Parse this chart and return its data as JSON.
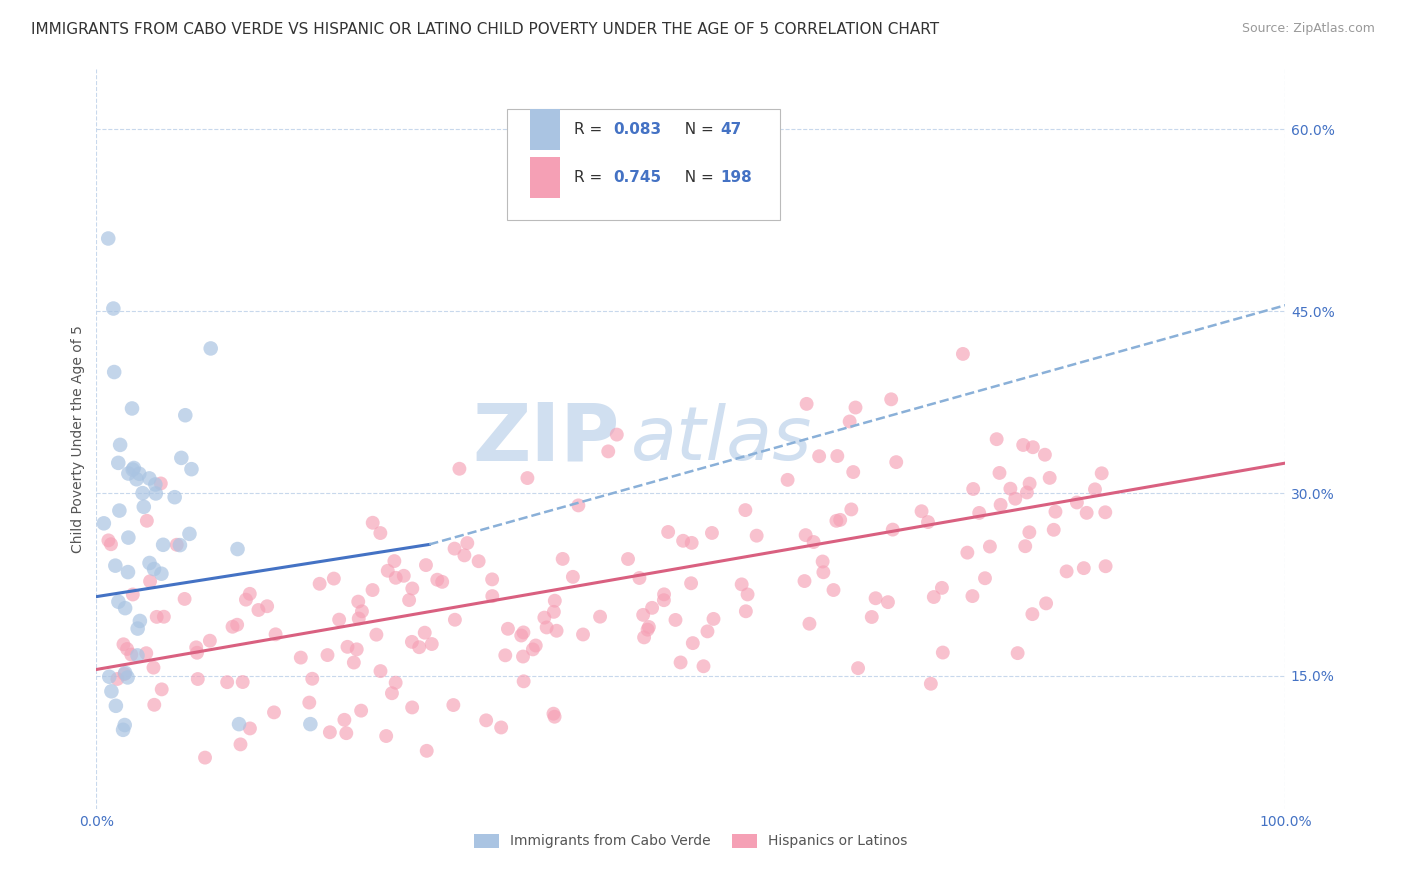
{
  "title": "IMMIGRANTS FROM CABO VERDE VS HISPANIC OR LATINO CHILD POVERTY UNDER THE AGE OF 5 CORRELATION CHART",
  "source": "Source: ZipAtlas.com",
  "ylabel": "Child Poverty Under the Age of 5",
  "xmin": 0.0,
  "xmax": 1.0,
  "ymin": 0.04,
  "ymax": 0.65,
  "yticks": [
    0.15,
    0.3,
    0.45,
    0.6
  ],
  "ytick_labels": [
    "15.0%",
    "30.0%",
    "45.0%",
    "60.0%"
  ],
  "xtick_labels": [
    "0.0%",
    "100.0%"
  ],
  "legend_label1": "Immigrants from Cabo Verde",
  "legend_label2": "Hispanics or Latinos",
  "R1": 0.083,
  "N1": 47,
  "R2": 0.745,
  "N2": 198,
  "color_blue": "#aac4e2",
  "color_pink": "#f5a0b5",
  "line_color_blue": "#4472c4",
  "line_color_pink": "#d96080",
  "line_color_blue_dash": "#8ab0d8",
  "background_color": "#ffffff",
  "grid_color": "#c8d8ec",
  "watermark_color": "#d0dff0",
  "title_fontsize": 11,
  "source_fontsize": 9,
  "axis_label_fontsize": 10,
  "tick_label_fontsize": 10,
  "seed_blue": 42,
  "seed_pink": 77,
  "blue_line_start_x": 0.0,
  "blue_line_start_y": 0.215,
  "blue_line_solid_end_x": 0.28,
  "blue_line_solid_end_y": 0.258,
  "blue_line_dash_end_x": 1.0,
  "blue_line_dash_end_y": 0.455,
  "pink_line_start_x": 0.0,
  "pink_line_start_y": 0.155,
  "pink_line_end_x": 1.0,
  "pink_line_end_y": 0.325
}
